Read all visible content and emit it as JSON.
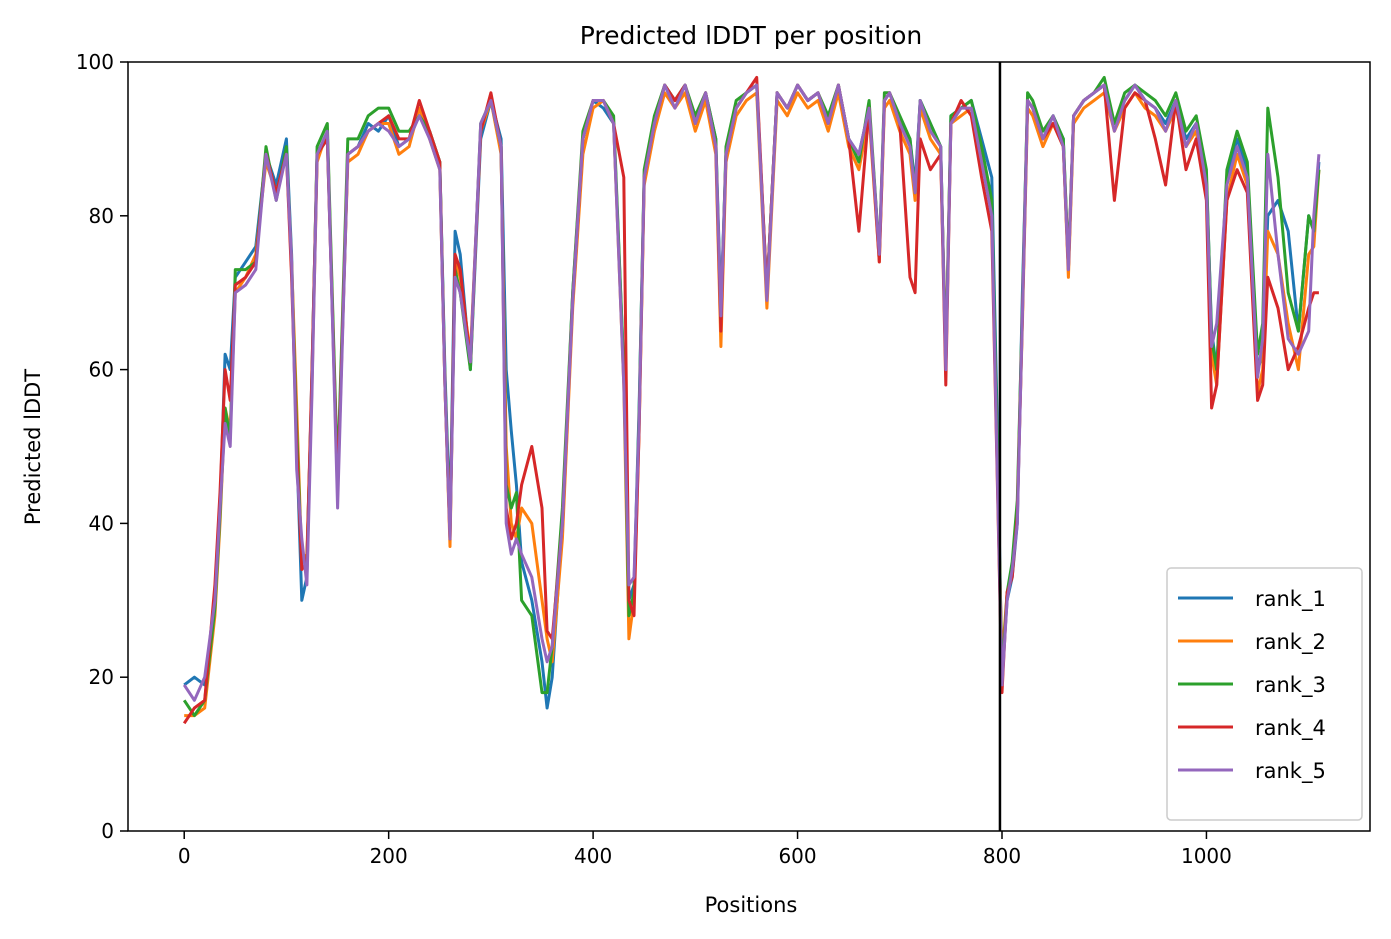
{
  "chart_data": {
    "type": "line",
    "title": "Predicted lDDT per position",
    "xlabel": "Positions",
    "ylabel": "Predicted lDDT",
    "xlim": [
      -55,
      1160
    ],
    "ylim": [
      0,
      100
    ],
    "xticks": [
      0,
      200,
      400,
      600,
      800,
      1000
    ],
    "yticks": [
      0,
      20,
      40,
      60,
      80,
      100
    ],
    "vertical_line": {
      "x": 798,
      "color": "#000000"
    },
    "legend_position": "lower right",
    "x": [
      0,
      10,
      20,
      30,
      35,
      40,
      45,
      50,
      60,
      70,
      80,
      90,
      100,
      105,
      110,
      115,
      120,
      125,
      130,
      140,
      150,
      160,
      170,
      180,
      190,
      200,
      210,
      220,
      230,
      240,
      250,
      255,
      260,
      265,
      270,
      280,
      290,
      300,
      310,
      315,
      320,
      325,
      330,
      340,
      350,
      355,
      360,
      370,
      380,
      390,
      400,
      410,
      420,
      430,
      435,
      440,
      445,
      450,
      460,
      470,
      480,
      490,
      500,
      510,
      520,
      525,
      530,
      540,
      550,
      560,
      570,
      580,
      590,
      600,
      610,
      620,
      630,
      640,
      650,
      660,
      670,
      680,
      685,
      690,
      700,
      710,
      715,
      720,
      730,
      740,
      745,
      750,
      760,
      770,
      780,
      790,
      795,
      800,
      805,
      810,
      815,
      820,
      825,
      830,
      840,
      850,
      860,
      865,
      870,
      880,
      890,
      900,
      910,
      920,
      930,
      940,
      950,
      960,
      970,
      980,
      990,
      1000,
      1005,
      1010,
      1020,
      1030,
      1040,
      1050,
      1055,
      1060,
      1070,
      1080,
      1090,
      1100,
      1105,
      1110
    ],
    "series": [
      {
        "name": "rank_1",
        "color": "#1f77b4",
        "values": [
          19,
          20,
          19,
          30,
          42,
          62,
          60,
          72,
          74,
          76,
          88,
          84,
          90,
          75,
          50,
          30,
          33,
          60,
          88,
          90,
          45,
          88,
          89,
          92,
          91,
          93,
          89,
          90,
          93,
          91,
          87,
          60,
          40,
          78,
          75,
          60,
          90,
          95,
          90,
          60,
          52,
          45,
          35,
          30,
          22,
          16,
          20,
          40,
          70,
          90,
          95,
          94,
          92,
          60,
          30,
          32,
          55,
          85,
          92,
          97,
          95,
          97,
          92,
          96,
          90,
          68,
          88,
          94,
          96,
          97,
          70,
          96,
          94,
          97,
          95,
          96,
          92,
          97,
          90,
          88,
          94,
          75,
          95,
          96,
          92,
          90,
          84,
          95,
          92,
          89,
          60,
          93,
          94,
          95,
          90,
          85,
          55,
          20,
          30,
          33,
          40,
          70,
          95,
          94,
          90,
          93,
          90,
          73,
          93,
          95,
          96,
          97,
          92,
          95,
          97,
          95,
          94,
          92,
          95,
          90,
          92,
          85,
          65,
          60,
          85,
          90,
          86,
          60,
          62,
          80,
          82,
          78,
          65,
          80,
          78,
          87
        ]
      },
      {
        "name": "rank_2",
        "color": "#ff7f0e",
        "values": [
          15,
          15,
          16,
          28,
          40,
          55,
          52,
          70,
          72,
          75,
          87,
          83,
          88,
          74,
          55,
          35,
          36,
          58,
          87,
          91,
          45,
          87,
          88,
          91,
          92,
          92,
          88,
          89,
          94,
          90,
          86,
          58,
          37,
          74,
          72,
          62,
          91,
          95,
          88,
          50,
          40,
          38,
          42,
          40,
          30,
          25,
          22,
          38,
          68,
          88,
          94,
          95,
          92,
          58,
          25,
          30,
          52,
          84,
          91,
          96,
          94,
          96,
          91,
          95,
          88,
          63,
          87,
          93,
          95,
          96,
          68,
          95,
          93,
          96,
          94,
          95,
          91,
          96,
          89,
          86,
          93,
          74,
          94,
          95,
          91,
          88,
          82,
          94,
          90,
          88,
          62,
          92,
          93,
          94,
          88,
          80,
          50,
          22,
          31,
          34,
          42,
          66,
          94,
          93,
          89,
          92,
          89,
          72,
          92,
          94,
          95,
          96,
          91,
          94,
          96,
          94,
          93,
          91,
          94,
          89,
          91,
          83,
          62,
          58,
          82,
          88,
          84,
          57,
          60,
          78,
          75,
          66,
          60,
          75,
          76,
          86
        ]
      },
      {
        "name": "rank_3",
        "color": "#2ca02c",
        "values": [
          17,
          15,
          17,
          29,
          41,
          55,
          51,
          73,
          73,
          74,
          89,
          82,
          89,
          73,
          52,
          35,
          35,
          59,
          89,
          92,
          46,
          90,
          90,
          93,
          94,
          94,
          91,
          91,
          93,
          91,
          87,
          59,
          39,
          73,
          70,
          60,
          92,
          95,
          89,
          45,
          42,
          44,
          30,
          28,
          18,
          18,
          24,
          42,
          70,
          91,
          95,
          95,
          93,
          60,
          28,
          31,
          54,
          86,
          93,
          97,
          95,
          97,
          93,
          96,
          90,
          66,
          89,
          95,
          96,
          97,
          70,
          96,
          94,
          97,
          95,
          96,
          93,
          97,
          90,
          87,
          95,
          75,
          96,
          96,
          93,
          90,
          83,
          95,
          92,
          89,
          61,
          93,
          94,
          95,
          89,
          82,
          52,
          20,
          31,
          35,
          43,
          68,
          96,
          95,
          91,
          93,
          90,
          74,
          93,
          95,
          96,
          98,
          92,
          96,
          97,
          96,
          95,
          93,
          96,
          91,
          93,
          86,
          64,
          60,
          86,
          91,
          87,
          62,
          66,
          94,
          85,
          70,
          65,
          80,
          78,
          86
        ]
      },
      {
        "name": "rank_4",
        "color": "#d62728",
        "values": [
          14,
          16,
          17,
          32,
          44,
          60,
          56,
          71,
          72,
          74,
          88,
          83,
          88,
          72,
          50,
          34,
          35,
          60,
          88,
          90,
          44,
          88,
          89,
          91,
          92,
          93,
          90,
          90,
          95,
          91,
          87,
          58,
          38,
          75,
          73,
          61,
          91,
          96,
          89,
          42,
          38,
          40,
          45,
          50,
          42,
          26,
          25,
          40,
          69,
          90,
          95,
          95,
          92,
          85,
          30,
          28,
          52,
          85,
          92,
          97,
          95,
          97,
          92,
          96,
          89,
          65,
          88,
          94,
          96,
          98,
          70,
          96,
          94,
          97,
          95,
          96,
          92,
          97,
          90,
          78,
          94,
          74,
          95,
          96,
          92,
          72,
          70,
          90,
          86,
          88,
          58,
          92,
          95,
          93,
          85,
          78,
          48,
          18,
          31,
          33,
          41,
          67,
          95,
          94,
          90,
          92,
          89,
          73,
          93,
          95,
          96,
          97,
          82,
          94,
          96,
          95,
          90,
          84,
          95,
          86,
          90,
          82,
          55,
          58,
          82,
          86,
          83,
          56,
          58,
          72,
          68,
          60,
          63,
          68,
          70,
          70
        ]
      },
      {
        "name": "rank_5",
        "color": "#9467bd",
        "values": [
          19,
          17,
          20,
          30,
          42,
          53,
          50,
          70,
          71,
          73,
          88,
          82,
          88,
          74,
          47,
          38,
          32,
          57,
          88,
          91,
          42,
          88,
          89,
          91,
          92,
          91,
          89,
          90,
          93,
          90,
          86,
          58,
          38,
          72,
          70,
          61,
          92,
          95,
          89,
          40,
          36,
          38,
          36,
          33,
          25,
          22,
          24,
          40,
          69,
          90,
          95,
          95,
          92,
          58,
          32,
          33,
          53,
          85,
          92,
          97,
          94,
          97,
          92,
          96,
          89,
          67,
          88,
          94,
          96,
          97,
          69,
          96,
          94,
          97,
          95,
          96,
          92,
          97,
          90,
          88,
          94,
          75,
          95,
          96,
          92,
          89,
          83,
          95,
          91,
          89,
          60,
          92,
          94,
          94,
          87,
          80,
          49,
          19,
          30,
          34,
          40,
          67,
          95,
          94,
          90,
          93,
          89,
          73,
          93,
          95,
          96,
          97,
          91,
          95,
          97,
          95,
          94,
          91,
          95,
          89,
          92,
          84,
          63,
          66,
          84,
          89,
          85,
          59,
          64,
          88,
          75,
          64,
          62,
          65,
          80,
          88
        ]
      }
    ]
  }
}
